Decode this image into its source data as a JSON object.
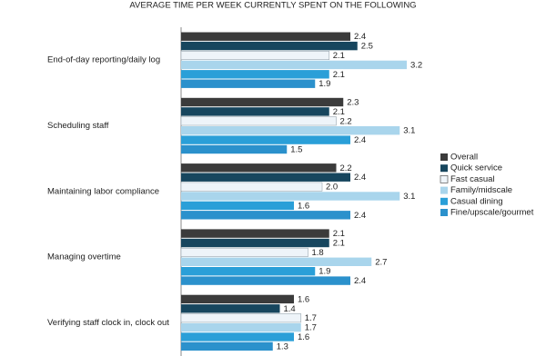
{
  "chart_data": {
    "type": "hbar",
    "title": "AVERAGE TIME PER WEEK CURRENTLY SPENT ON THE FOLLOWING",
    "categories": [
      "End-of-day reporting/daily log",
      "Scheduling staff",
      "Maintaining labor compliance",
      "Managing overtime",
      "Verifying staff clock in, clock out"
    ],
    "series": [
      {
        "name": "Overall",
        "color": "#3b3b3b",
        "values": [
          2.4,
          2.3,
          2.2,
          2.1,
          1.6
        ]
      },
      {
        "name": "Quick service",
        "color": "#17465e",
        "values": [
          2.5,
          2.1,
          2.4,
          2.1,
          1.4
        ]
      },
      {
        "name": "Fast casual",
        "color": "#eef4f9",
        "values": [
          2.1,
          2.2,
          2.0,
          1.8,
          1.7
        ],
        "value_labels": [
          "2.1",
          "2.2",
          "2.0",
          "1.8",
          "1.7"
        ]
      },
      {
        "name": "Family/midscale",
        "color": "#a9d5ec",
        "values": [
          3.2,
          3.1,
          3.1,
          2.7,
          1.7
        ]
      },
      {
        "name": "Casual dining",
        "color": "#2a9fd8",
        "values": [
          2.1,
          2.4,
          1.6,
          1.9,
          1.6
        ]
      },
      {
        "name": "Fine/upscale/gourmet",
        "color": "#2b91cc",
        "values": [
          1.9,
          1.5,
          2.4,
          2.4,
          1.3
        ]
      }
    ],
    "legend": "right"
  }
}
